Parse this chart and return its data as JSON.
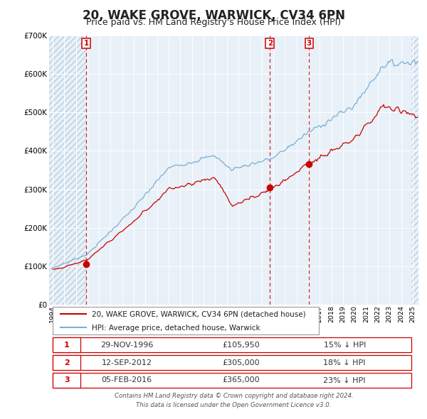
{
  "title": "20, WAKE GROVE, WARWICK, CV34 6PN",
  "subtitle": "Price paid vs. HM Land Registry's House Price Index (HPI)",
  "title_fontsize": 12,
  "subtitle_fontsize": 9,
  "xmin": 1993.7,
  "xmax": 2025.5,
  "ymin": 0,
  "ymax": 700000,
  "yticks": [
    0,
    100000,
    200000,
    300000,
    400000,
    500000,
    600000,
    700000
  ],
  "ytick_labels": [
    "£0",
    "£100K",
    "£200K",
    "£300K",
    "£400K",
    "£500K",
    "£600K",
    "£700K"
  ],
  "xticks": [
    1994,
    1995,
    1996,
    1997,
    1998,
    1999,
    2000,
    2001,
    2002,
    2003,
    2004,
    2005,
    2006,
    2007,
    2008,
    2009,
    2010,
    2011,
    2012,
    2013,
    2014,
    2015,
    2016,
    2017,
    2018,
    2019,
    2020,
    2021,
    2022,
    2023,
    2024,
    2025
  ],
  "sales": [
    {
      "year": 1996.91,
      "price": 105950,
      "label": "1"
    },
    {
      "year": 2012.71,
      "price": 305000,
      "label": "2"
    },
    {
      "year": 2016.09,
      "price": 365000,
      "label": "3"
    }
  ],
  "vlines": [
    1996.91,
    2012.71,
    2016.09
  ],
  "sale_color": "#cc0000",
  "hpi_color": "#7bafd4",
  "plot_bg": "#e8f0f8",
  "grid_color": "#ffffff",
  "legend_items": [
    "20, WAKE GROVE, WARWICK, CV34 6PN (detached house)",
    "HPI: Average price, detached house, Warwick"
  ],
  "table_rows": [
    {
      "num": "1",
      "date": "29-NOV-1996",
      "price": "£105,950",
      "hpi": "15% ↓ HPI"
    },
    {
      "num": "2",
      "date": "12-SEP-2012",
      "price": "£305,000",
      "hpi": "18% ↓ HPI"
    },
    {
      "num": "3",
      "date": "05-FEB-2016",
      "price": "£365,000",
      "hpi": "23% ↓ HPI"
    }
  ],
  "footer": "Contains HM Land Registry data © Crown copyright and database right 2024.\nThis data is licensed under the Open Government Licence v3.0."
}
